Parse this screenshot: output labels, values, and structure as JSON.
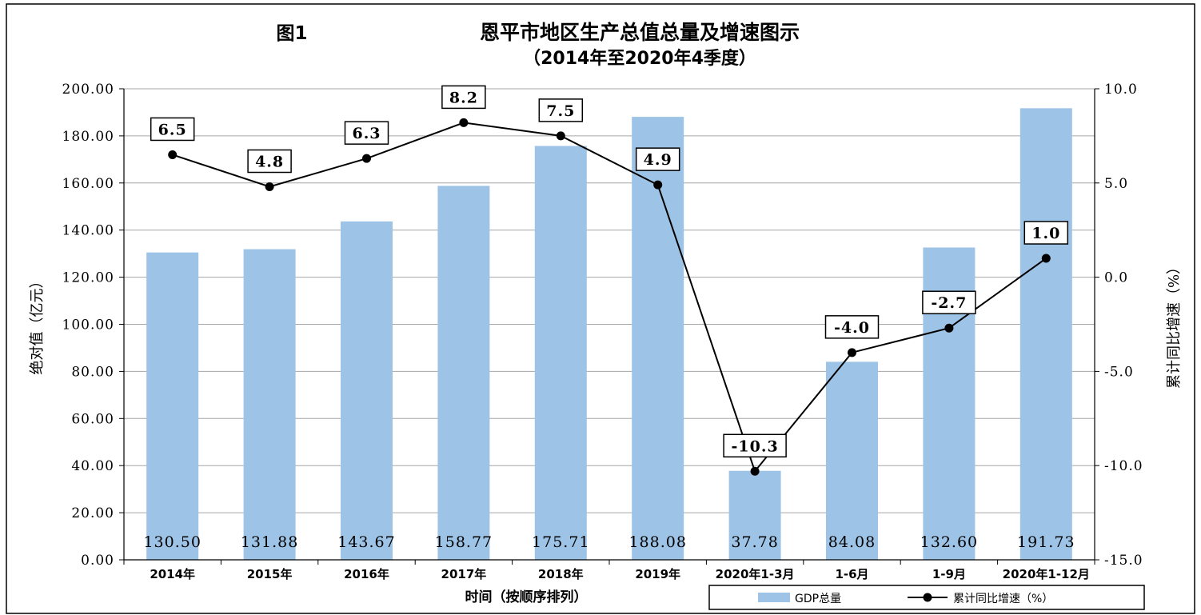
{
  "chart_data": {
    "type": "bar",
    "title_prefix": "图1",
    "title": "恩平市地区生产总值总量及增速图示",
    "subtitle": "（2014年至2020年4季度）",
    "xlabel": "时间（按顺序排列）",
    "ylabel": "绝对值（亿元）",
    "y2label": "累计同比增速（%）",
    "categories": [
      "2014年",
      "2015年",
      "2016年",
      "2017年",
      "2018年",
      "2019年",
      "2020年1-3月",
      "1-6月",
      "1-9月",
      "2020年1-12月"
    ],
    "value_labels": [
      "130.50",
      "131.88",
      "143.67",
      "158.77",
      "175.71",
      "188.08",
      "37.78",
      "84.08",
      "132.60",
      "191.73"
    ],
    "growth_labels": [
      "6.5",
      "4.8",
      "6.3",
      "8.2",
      "7.5",
      "4.9",
      "-10.3",
      "-4.0",
      "-2.7",
      "1.0"
    ],
    "series": [
      {
        "name": "GDP总量",
        "type": "bar",
        "axis": "left",
        "color": "#9dc3e6",
        "values": [
          130.5,
          131.88,
          143.67,
          158.77,
          175.71,
          188.08,
          37.78,
          84.08,
          132.6,
          191.73
        ]
      },
      {
        "name": "累计同比增速（%）",
        "type": "line",
        "axis": "right",
        "color": "#000000",
        "values": [
          6.5,
          4.8,
          6.3,
          8.2,
          7.5,
          4.9,
          -10.3,
          -4.0,
          -2.7,
          1.0
        ]
      }
    ],
    "ylim": [
      0,
      200
    ],
    "yticks": [
      "0.00",
      "20.00",
      "40.00",
      "60.00",
      "80.00",
      "100.00",
      "120.00",
      "140.00",
      "160.00",
      "180.00",
      "200.00"
    ],
    "y2lim": [
      -15,
      10
    ],
    "y2ticks": [
      "-15.0",
      "-10.0",
      "-5.0",
      "0.0",
      "5.0",
      "10.0"
    ],
    "grid": true,
    "legend_position": "bottom-right"
  }
}
